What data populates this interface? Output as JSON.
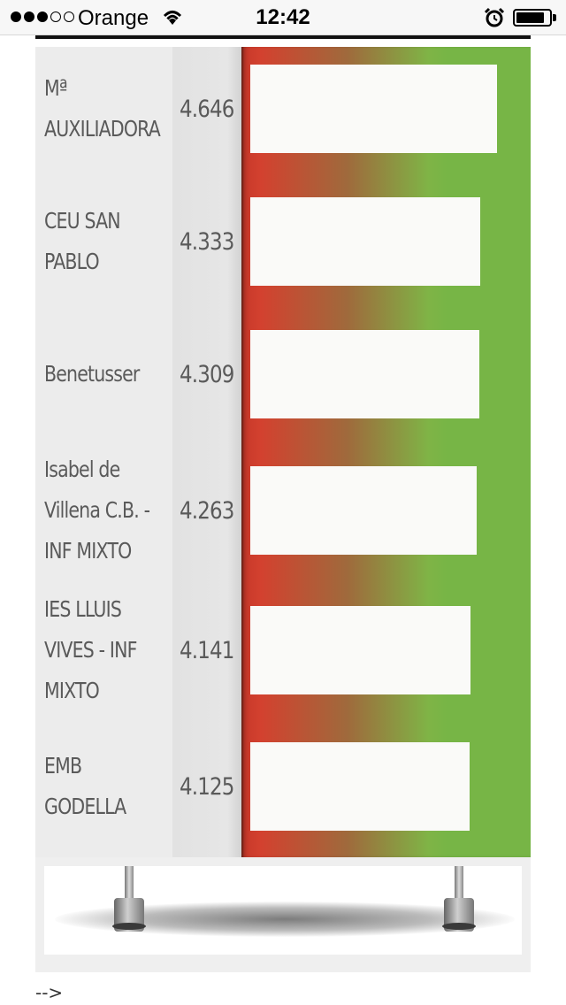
{
  "status_bar": {
    "carrier": "Orange",
    "time": "12:42",
    "signal_strength": 3,
    "battery_level": 0.85
  },
  "chart_data": {
    "type": "bar",
    "categories": [
      "Mª AUXILIADORA",
      "CEU SAN PABLO",
      "Benetusser",
      "Isabel de Villena C.B. - INF MIXTO",
      "IES LLUIS VIVES - INF MIXTO",
      "EMB GODELLA"
    ],
    "values": [
      4.646,
      4.333,
      4.309,
      4.263,
      4.141,
      4.125
    ],
    "labels": [
      [
        "Mª",
        "AUXILIADORA"
      ],
      [
        "CEU SAN",
        "PABLO"
      ],
      [
        "Benetusser"
      ],
      [
        "Isabel de",
        "Villena C.B. -",
        "INF MIXTO"
      ],
      [
        "IES LLUIS",
        "VIVES - INF",
        "MIXTO"
      ],
      [
        "EMB",
        "GODELLA"
      ]
    ],
    "value_labels": [
      "4.646",
      "4.333",
      "4.309",
      "4.263",
      "4.141",
      "4.125"
    ],
    "colors": {
      "low": "#d3412f",
      "mid": "#9f6a3c",
      "high": "#77b546",
      "bar_fill": "#fafaf8"
    }
  },
  "footer": {
    "text": "-->"
  }
}
